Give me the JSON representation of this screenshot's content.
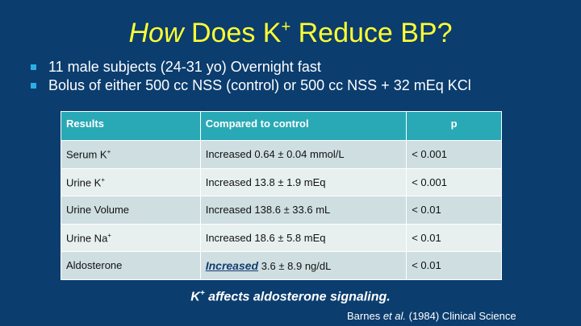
{
  "slide": {
    "title": {
      "emph": "How",
      "pre": " Does K",
      "sup": "+",
      "post": " Reduce BP?"
    },
    "bullets": [
      "11 male subjects (24-31 yo) Overnight fast",
      "Bolus of either 500 cc NSS (control) or 500 cc NSS + 32 mEq KCl"
    ],
    "table": {
      "headers": [
        "Results",
        "Compared to control",
        "p"
      ],
      "rows": [
        {
          "result": "Serum K",
          "result_sup": "+",
          "comparison": "Increased 0.64 ± 0.04 mmol/L",
          "p": "< 0.001"
        },
        {
          "result": "Urine K",
          "result_sup": "+",
          "comparison": "Increased 13.8 ± 1.9 mEq",
          "p": "< 0.001"
        },
        {
          "result": "Urine Volume",
          "result_sup": "",
          "comparison": "Increased 138.6 ± 33.6 mL",
          "p": "< 0.01"
        },
        {
          "result": "Urine Na",
          "result_sup": "+",
          "comparison": "Increased 18.6 ± 5.8  mEq",
          "p": "< 0.01"
        },
        {
          "result": "Aldosterone",
          "result_sup": "",
          "comparison_emph": "Increased",
          "comparison": " 3.6 ± 8.9 ng/dL",
          "p": "< 0.01"
        }
      ]
    },
    "conclusion": {
      "pre": "K",
      "sup": "+",
      "post": " affects aldosterone signaling."
    },
    "citation": {
      "pre": "Barnes ",
      "emph": "et al.",
      "post": " (1984) Clinical Science"
    },
    "colors": {
      "background": "#0b3d6e",
      "title": "#ffff33",
      "bullet": "#2ab0e6",
      "table_header": "#29a9b6"
    }
  }
}
